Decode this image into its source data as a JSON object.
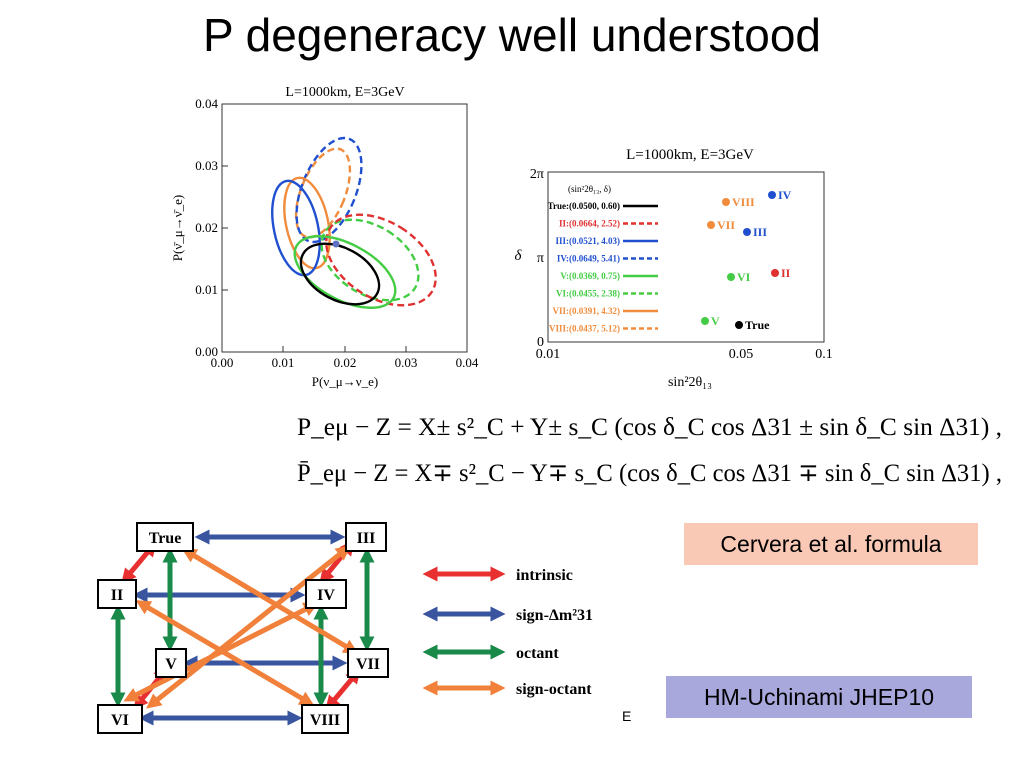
{
  "slide": {
    "title": "P degeneracy well understood",
    "footer_mark": "E"
  },
  "plot1": {
    "title": "L=1000km, E=3GeV",
    "xlabel": "P(ν_μ→ν_e)",
    "ylabel": "P(ν̄_μ→ν̄_e)",
    "x_ticks": [
      "0.00",
      "0.01",
      "0.02",
      "0.03",
      "0.04"
    ],
    "y_ticks": [
      "0.00",
      "0.01",
      "0.02",
      "0.03",
      "0.04"
    ]
  },
  "plot2": {
    "title": "L=1000km, E=3GeV",
    "xlabel": "sin²2θ₁₃",
    "ylabel": "δ",
    "y_ticks": [
      "0",
      "π",
      "2π"
    ],
    "x_ticks": [
      "0.01",
      "0.05",
      "0.1"
    ],
    "legend_header": "(sin²2θ₁₃, δ)",
    "legend": [
      {
        "label": "True:(0.0500, 0.60)",
        "color": "#000000",
        "style": "solid"
      },
      {
        "label": "II:(0.0664, 2.52)",
        "color": "#e03030",
        "style": "dashed"
      },
      {
        "label": "III:(0.0521, 4.03)",
        "color": "#2050d0",
        "style": "solid"
      },
      {
        "label": "IV:(0.0649, 5.41)",
        "color": "#2050d0",
        "style": "dashed"
      },
      {
        "label": "V:(0.0369, 0.75)",
        "color": "#44cc44",
        "style": "solid"
      },
      {
        "label": "VI:(0.0455, 2.38)",
        "color": "#44cc44",
        "style": "dashed"
      },
      {
        "label": "VII:(0.0391, 4.32)",
        "color": "#f08c3c",
        "style": "solid"
      },
      {
        "label": "VIII:(0.0437, 5.12)",
        "color": "#f08c3c",
        "style": "dashed"
      }
    ],
    "points": [
      {
        "name": "IV",
        "color": "#2050d0"
      },
      {
        "name": "VIII",
        "color": "#f08c3c"
      },
      {
        "name": "VII",
        "color": "#f08c3c"
      },
      {
        "name": "III",
        "color": "#2050d0"
      },
      {
        "name": "II",
        "color": "#e03030"
      },
      {
        "name": "VI",
        "color": "#44cc44"
      },
      {
        "name": "V",
        "color": "#44cc44"
      },
      {
        "name": "True",
        "color": "#000000"
      }
    ]
  },
  "equations": {
    "line1": "P_eμ − Z = X± s²_C + Y± s_C (cos δ_C cos Δ31 ± sin δ_C sin Δ31) ,",
    "line2": "P̄_eμ − Z = X∓ s²_C − Y∓ s_C (cos δ_C cos Δ31 ∓ sin δ_C sin Δ31) ,"
  },
  "diagram": {
    "nodes": [
      "True",
      "III",
      "II",
      "IV",
      "V",
      "VII",
      "VI",
      "VIII"
    ],
    "legend": [
      {
        "label": "intrinsic",
        "color": "#e83030"
      },
      {
        "label": "sign-Δm²31",
        "color": "#3a55a0"
      },
      {
        "label": "octant",
        "color": "#1a8a4a"
      },
      {
        "label": "sign-octant",
        "color": "#f0803a"
      }
    ]
  },
  "boxes": {
    "cervera": "Cervera et al. formula",
    "hm": "HM-Uchinami JHEP10"
  }
}
